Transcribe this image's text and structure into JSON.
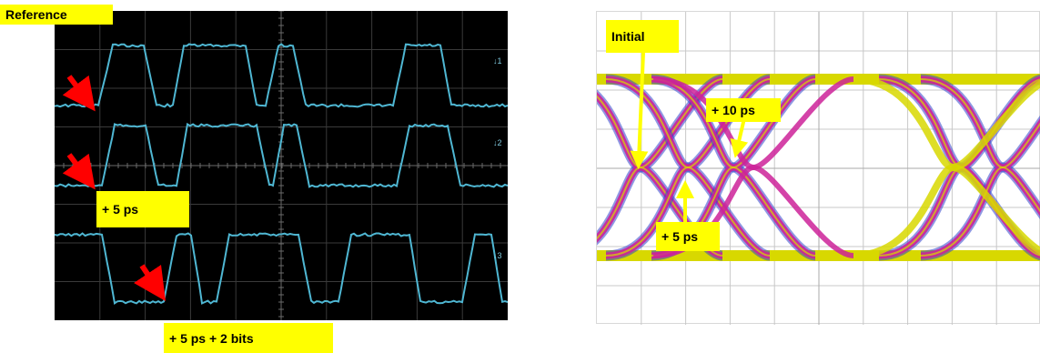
{
  "labels": {
    "reference": "Reference",
    "plus5": "+ 5 ps",
    "plus5_2bits": "+ 5 ps + 2 bits",
    "initial": "Initial",
    "plus10": "+ 10 ps",
    "eye_plus5": "+ 5 ps"
  },
  "channel_markers": [
    "1",
    "2",
    "3"
  ],
  "colors": {
    "label_bg": "#ffff00",
    "arrow": "#ff0000",
    "trace": "#4fb7d3",
    "eye_yellow": "#d8d800",
    "eye_magenta": "#cc2299",
    "eye_blue": "#3344cc"
  }
}
